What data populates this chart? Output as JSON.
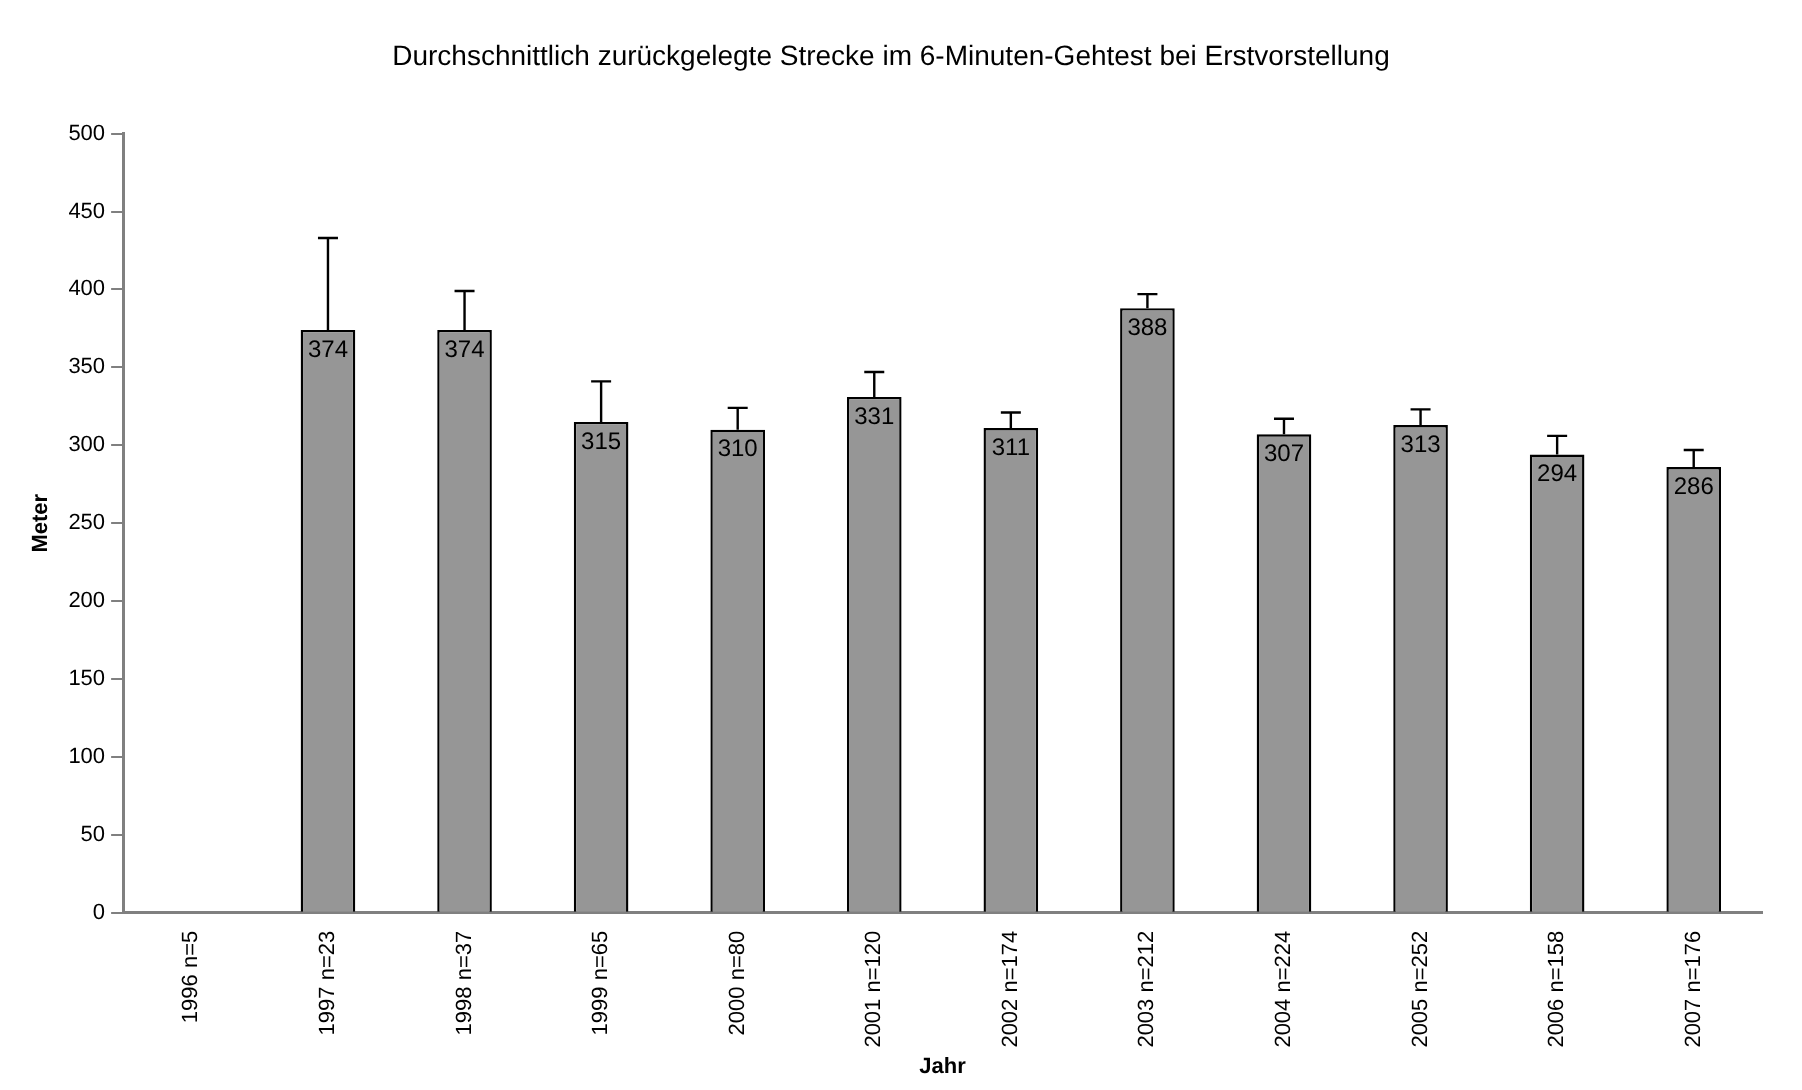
{
  "chart_data": {
    "type": "bar",
    "title": "Durchschnittlich zurückgelegte Strecke im 6-Minuten-Gehtest bei Erstvorstellung",
    "xlabel": "Jahr",
    "ylabel": "Meter",
    "categories": [
      "1996 n=5",
      "1997 n=23",
      "1998 n=37",
      "1999 n=65",
      "2000 n=80",
      "2001 n=120",
      "2002 n=174",
      "2003 n=212",
      "2004 n=224",
      "2005 n=252",
      "2006 n=158",
      "2007 n=176"
    ],
    "values": [
      null,
      374,
      374,
      315,
      310,
      331,
      311,
      388,
      307,
      313,
      294,
      286
    ],
    "errors": [
      null,
      [
        374,
        433
      ],
      [
        374,
        399
      ],
      [
        315,
        341
      ],
      [
        310,
        324
      ],
      [
        331,
        347
      ],
      [
        311,
        321
      ],
      [
        388,
        397
      ],
      [
        307,
        317
      ],
      [
        313,
        323
      ],
      [
        294,
        306
      ],
      [
        286,
        297
      ]
    ],
    "color": "#969696",
    "ylim": [
      0,
      500
    ],
    "yticks": [
      0,
      50,
      100,
      150,
      200,
      250,
      300,
      350,
      400,
      450,
      500
    ],
    "grid": false,
    "legend": false,
    "data_labels": true
  }
}
